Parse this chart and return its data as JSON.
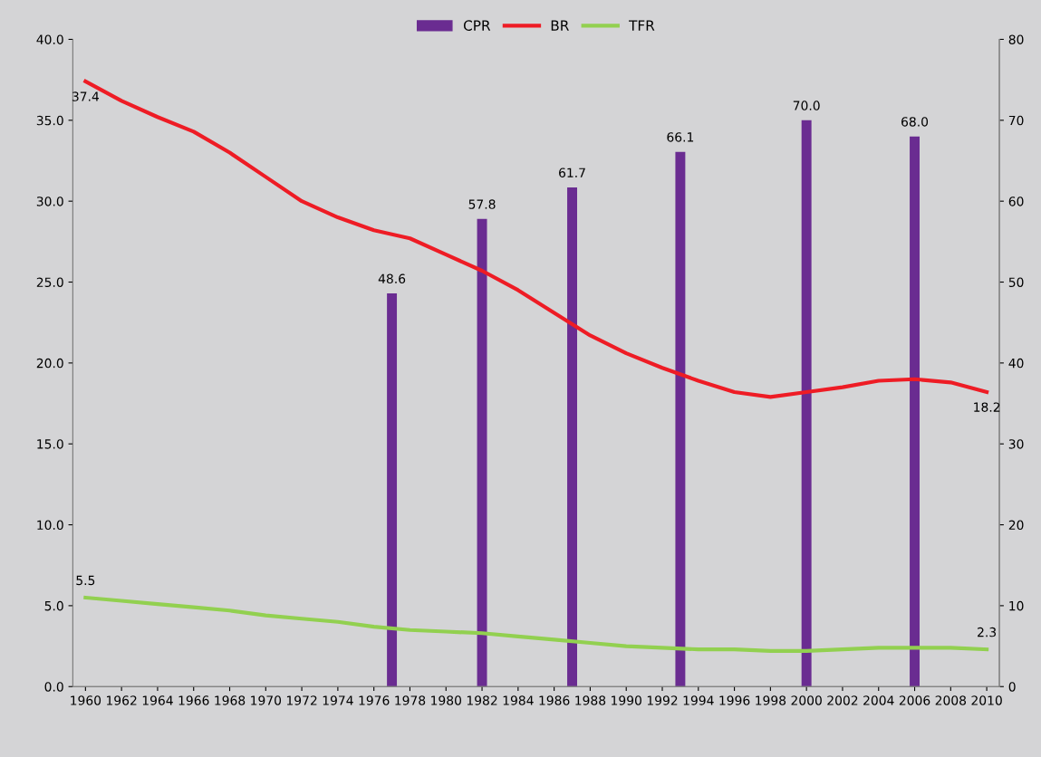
{
  "chart_data": {
    "type": "line",
    "xlim": [
      1959.3,
      2010.7
    ],
    "xticks": [
      1960,
      1962,
      1964,
      1966,
      1968,
      1970,
      1972,
      1974,
      1976,
      1978,
      1980,
      1982,
      1984,
      1986,
      1988,
      1990,
      1992,
      1994,
      1996,
      1998,
      2000,
      2002,
      2004,
      2006,
      2008,
      2010
    ],
    "ylim": [
      0,
      40
    ],
    "yticks": [
      {
        "value": 0,
        "label": "0.0"
      },
      {
        "value": 5,
        "label": "5.0"
      },
      {
        "value": 10,
        "label": "10.0"
      },
      {
        "value": 15,
        "label": "15.0"
      },
      {
        "value": 20,
        "label": "20.0"
      },
      {
        "value": 25,
        "label": "25.0"
      },
      {
        "value": 30,
        "label": "30.0"
      },
      {
        "value": 35,
        "label": "35.0"
      },
      {
        "value": 40,
        "label": "40.0"
      }
    ],
    "y2lim": [
      0,
      80
    ],
    "y2ticks": [
      0,
      10,
      20,
      30,
      40,
      50,
      60,
      70,
      80
    ],
    "grid": false,
    "legend": "top",
    "series": [
      {
        "name": "CPR",
        "type": "bar",
        "axis": "y2",
        "color": "#6a2c91",
        "x": [
          1977,
          1982,
          1987,
          1993,
          2000,
          2006
        ],
        "values": [
          48.6,
          57.8,
          61.7,
          66.1,
          70.0,
          68.0
        ],
        "value_labels": [
          "48.6",
          "57.8",
          "61.7",
          "66.1",
          "70.0",
          "68.0"
        ]
      },
      {
        "name": "BR",
        "color": "#ee1c25",
        "x": [
          1960,
          1962,
          1964,
          1966,
          1968,
          1970,
          1972,
          1974,
          1976,
          1978,
          1980,
          1982,
          1984,
          1986,
          1988,
          1990,
          1992,
          1994,
          1996,
          1998,
          2000,
          2002,
          2004,
          2006,
          2008,
          2010
        ],
        "values": [
          37.4,
          36.2,
          35.2,
          34.3,
          33.0,
          31.5,
          30.0,
          29.0,
          28.2,
          27.7,
          26.7,
          25.7,
          24.5,
          23.1,
          21.7,
          20.6,
          19.7,
          18.9,
          18.2,
          17.9,
          18.2,
          18.5,
          18.9,
          19.0,
          18.8,
          18.2
        ],
        "value_labels": [
          "37.4",
          null,
          null,
          null,
          null,
          null,
          null,
          null,
          null,
          null,
          null,
          null,
          null,
          null,
          null,
          null,
          null,
          null,
          null,
          null,
          null,
          null,
          null,
          null,
          null,
          "18.2"
        ]
      },
      {
        "name": "TFR",
        "color": "#92d050",
        "x": [
          1960,
          1962,
          1964,
          1966,
          1968,
          1970,
          1972,
          1974,
          1976,
          1978,
          1980,
          1982,
          1984,
          1986,
          1988,
          1990,
          1992,
          1994,
          1996,
          1998,
          2000,
          2002,
          2004,
          2006,
          2008,
          2010
        ],
        "values": [
          5.5,
          5.3,
          5.1,
          4.9,
          4.7,
          4.4,
          4.2,
          4.0,
          3.7,
          3.5,
          3.4,
          3.3,
          3.1,
          2.9,
          2.7,
          2.5,
          2.4,
          2.3,
          2.3,
          2.2,
          2.2,
          2.3,
          2.4,
          2.4,
          2.4,
          2.3
        ],
        "value_labels": [
          "5.5",
          null,
          null,
          null,
          null,
          null,
          null,
          null,
          null,
          null,
          null,
          null,
          null,
          null,
          null,
          null,
          null,
          null,
          null,
          null,
          null,
          null,
          null,
          null,
          null,
          "2.3"
        ]
      }
    ]
  }
}
